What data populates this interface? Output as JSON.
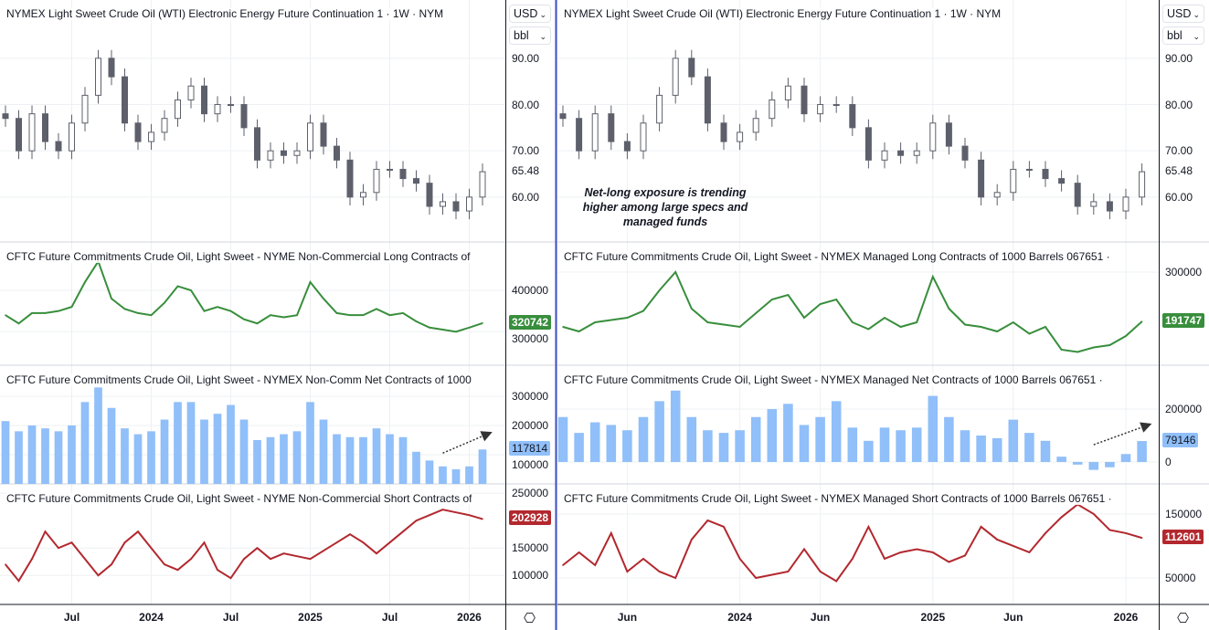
{
  "currency_select": "USD",
  "unit_select": "bbl",
  "annotation": "Net-long exposure is trending higher among large specs and managed funds",
  "chart_data": [
    {
      "type": "candlestick+line+bar",
      "x": [
        "2023-02",
        "2023-03",
        "2023-04",
        "2023-05",
        "2023-06",
        "2023-07",
        "2023-08",
        "2023-09",
        "2023-10",
        "2023-11",
        "2023-12",
        "2024-01",
        "2024-02",
        "2024-03",
        "2024-04",
        "2024-05",
        "2024-06",
        "2024-07",
        "2024-08",
        "2024-09",
        "2024-10",
        "2024-11",
        "2024-12",
        "2025-01",
        "2025-02",
        "2025-03",
        "2025-04",
        "2025-05",
        "2025-06",
        "2025-07",
        "2025-08",
        "2025-09",
        "2025-10",
        "2025-11",
        "2025-12",
        "2026-01",
        "2026-02"
      ],
      "x_ticks": [
        {
          "x": "2023-07",
          "label": "Jul"
        },
        {
          "x": "2024-01",
          "label": "2024"
        },
        {
          "x": "2024-07",
          "label": "Jul"
        },
        {
          "x": "2025-01",
          "label": "2025"
        },
        {
          "x": "2025-07",
          "label": "Jul"
        },
        {
          "x": "2026-01",
          "label": "2026"
        }
      ],
      "panels": [
        {
          "title": "NYMEX Light Sweet Crude Oil (WTI) Electronic Energy Future Continuation 1 · 1W · NYM",
          "type": "candlestick",
          "color": "#5d606b",
          "ylim": [
            50.3,
            102.6
          ],
          "ticks": [
            "90.00",
            "80.00",
            "70.00",
            "60.00"
          ],
          "last": "65.48",
          "last_bg": "#ffffff",
          "values": [
            77,
            70,
            78,
            72,
            70,
            76,
            82,
            90,
            86,
            76,
            72,
            74,
            77,
            81,
            84,
            78,
            80,
            80,
            75,
            68,
            70,
            69,
            70,
            76,
            71,
            68,
            60,
            61,
            66,
            66,
            64,
            63,
            58,
            59,
            57,
            60,
            65.48
          ]
        },
        {
          "title": "CFTC Future Commitments Crude Oil, Light Sweet - NYME Non-Commercial Long Contracts of",
          "type": "line",
          "color": "#388e3c",
          "ylim": [
            219000,
            517000
          ],
          "ticks": [
            "400000",
            "300000"
          ],
          "last": "320742",
          "values": [
            340000,
            320000,
            345000,
            345000,
            350000,
            360000,
            420000,
            470000,
            380000,
            355000,
            345000,
            340000,
            370000,
            410000,
            400000,
            350000,
            360000,
            350000,
            330000,
            320000,
            340000,
            335000,
            340000,
            420000,
            380000,
            345000,
            340000,
            340000,
            355000,
            340000,
            345000,
            325000,
            310000,
            305000,
            300000,
            310000,
            320742
          ]
        },
        {
          "title": "CFTC Future Commitments Crude Oil, Light Sweet - NYMEX Non-Comm Net Contracts of 1000",
          "type": "bar",
          "color": "#90bff9",
          "ylim": [
            0,
            406000
          ],
          "ticks": [
            "300000",
            "200000",
            "100000"
          ],
          "last": "117814",
          "values": [
            215000,
            180000,
            200000,
            190000,
            180000,
            200000,
            280000,
            330000,
            260000,
            190000,
            170000,
            180000,
            220000,
            280000,
            280000,
            220000,
            240000,
            270000,
            220000,
            150000,
            160000,
            170000,
            180000,
            280000,
            220000,
            170000,
            160000,
            160000,
            190000,
            170000,
            160000,
            110000,
            80000,
            60000,
            50000,
            60000,
            117814
          ]
        },
        {
          "title": "CFTC Future Commitments Crude Oil, Light Sweet - NYME Non-Commercial Short Contracts of",
          "type": "line",
          "color": "#b2282e",
          "ylim": [
            47000,
            267000
          ],
          "ticks": [
            "250000",
            "150000",
            "100000"
          ],
          "last": "202928",
          "values": [
            120000,
            90000,
            130000,
            180000,
            150000,
            160000,
            130000,
            100000,
            120000,
            160000,
            180000,
            150000,
            120000,
            110000,
            130000,
            160000,
            110000,
            95000,
            130000,
            150000,
            130000,
            140000,
            135000,
            130000,
            145000,
            160000,
            175000,
            160000,
            140000,
            160000,
            180000,
            200000,
            210000,
            220000,
            215000,
            210000,
            202928
          ]
        }
      ]
    },
    {
      "type": "candlestick+line+bar",
      "x": [
        "2023-02",
        "2023-03",
        "2023-04",
        "2023-05",
        "2023-06",
        "2023-07",
        "2023-08",
        "2023-09",
        "2023-10",
        "2023-11",
        "2023-12",
        "2024-01",
        "2024-02",
        "2024-03",
        "2024-04",
        "2024-05",
        "2024-06",
        "2024-07",
        "2024-08",
        "2024-09",
        "2024-10",
        "2024-11",
        "2024-12",
        "2025-01",
        "2025-02",
        "2025-03",
        "2025-04",
        "2025-05",
        "2025-06",
        "2025-07",
        "2025-08",
        "2025-09",
        "2025-10",
        "2025-11",
        "2025-12",
        "2026-01",
        "2026-02"
      ],
      "x_ticks": [
        {
          "x": "2023-06",
          "label": "Jun"
        },
        {
          "x": "2024-01",
          "label": "2024"
        },
        {
          "x": "2024-06",
          "label": "Jun"
        },
        {
          "x": "2025-01",
          "label": "2025"
        },
        {
          "x": "2025-06",
          "label": "Jun"
        },
        {
          "x": "2026-01",
          "label": "2026"
        }
      ],
      "panels": [
        {
          "title": "NYMEX Light Sweet Crude Oil (WTI) Electronic Energy Future Continuation 1 · 1W · NYM",
          "type": "candlestick",
          "color": "#5d606b",
          "ylim": [
            50.3,
            102.6
          ],
          "ticks": [
            "90.00",
            "80.00",
            "70.00",
            "60.00"
          ],
          "last": "65.48",
          "last_bg": "#ffffff",
          "values": [
            77,
            70,
            78,
            72,
            70,
            76,
            82,
            90,
            86,
            76,
            72,
            74,
            77,
            81,
            84,
            78,
            80,
            80,
            75,
            68,
            70,
            69,
            70,
            76,
            71,
            68,
            60,
            61,
            66,
            66,
            64,
            63,
            58,
            59,
            57,
            60,
            65.48
          ]
        },
        {
          "title": "CFTC Future Commitments Crude Oil, Light Sweet - NYMEX Managed Long Contracts of 1000 Barrels 067651 ·",
          "type": "line",
          "color": "#388e3c",
          "ylim": [
            96000,
            366000
          ],
          "ticks": [
            "300000"
          ],
          "last": "191747",
          "values": [
            180000,
            170000,
            190000,
            195000,
            200000,
            215000,
            260000,
            300000,
            220000,
            190000,
            185000,
            180000,
            210000,
            240000,
            250000,
            200000,
            230000,
            240000,
            190000,
            175000,
            200000,
            180000,
            190000,
            290000,
            220000,
            185000,
            180000,
            170000,
            190000,
            165000,
            180000,
            130000,
            125000,
            135000,
            140000,
            160000,
            191747
          ]
        },
        {
          "title": "CFTC Future Commitments Crude Oil, Light Sweet - NYMEX Managed Net Contracts of 1000 Barrels 067651 ·",
          "type": "bar",
          "color": "#90bff9",
          "ylim": [
            -83000,
            366000
          ],
          "ticks": [
            "200000",
            "0"
          ],
          "last": "79146",
          "values": [
            170000,
            110000,
            150000,
            140000,
            120000,
            170000,
            230000,
            270000,
            170000,
            120000,
            110000,
            120000,
            170000,
            200000,
            220000,
            140000,
            170000,
            230000,
            130000,
            80000,
            130000,
            120000,
            130000,
            250000,
            170000,
            120000,
            100000,
            90000,
            160000,
            110000,
            80000,
            20000,
            -10000,
            -30000,
            -20000,
            30000,
            79146
          ]
        },
        {
          "title": "CFTC Future Commitments Crude Oil, Light Sweet - NYMEX Managed Short Contracts of 1000 Barrels 067651 ·",
          "type": "line",
          "color": "#b2282e",
          "ylim": [
            8600,
            197000
          ],
          "ticks": [
            "150000",
            "50000"
          ],
          "last": "112601",
          "values": [
            70000,
            90000,
            70000,
            120000,
            60000,
            80000,
            60000,
            50000,
            110000,
            140000,
            130000,
            80000,
            50000,
            55000,
            60000,
            95000,
            60000,
            45000,
            80000,
            130000,
            80000,
            90000,
            95000,
            90000,
            75000,
            85000,
            130000,
            110000,
            100000,
            90000,
            120000,
            145000,
            165000,
            150000,
            125000,
            120000,
            112601
          ]
        }
      ]
    }
  ]
}
